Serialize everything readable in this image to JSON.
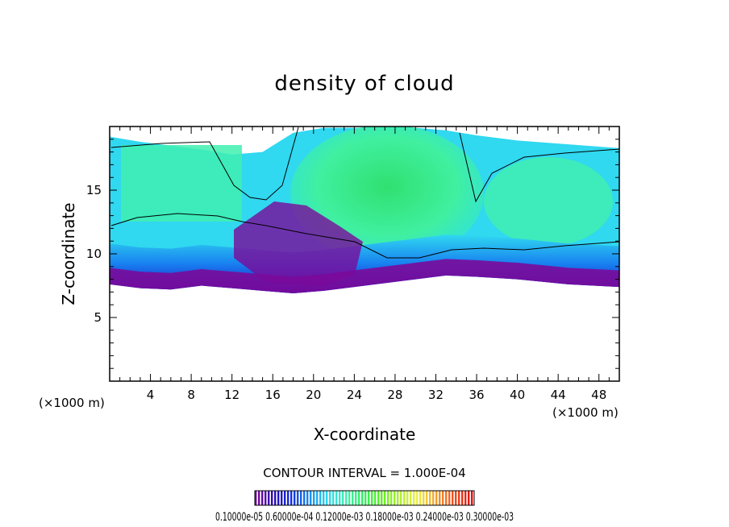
{
  "chart_data": {
    "type": "heatmap",
    "title": "density of cloud",
    "xlabel": "X-coordinate",
    "ylabel": "Z-coordinate",
    "x_unit_label": "(×1000 m)",
    "y_unit_label": "(×1000 m)",
    "xlim": [
      0,
      50
    ],
    "ylim": [
      0,
      20
    ],
    "x_ticks": [
      4,
      8,
      12,
      16,
      20,
      24,
      28,
      32,
      36,
      40,
      44,
      48
    ],
    "y_ticks": [
      5,
      10,
      15
    ],
    "contour_interval_text": "CONTOUR INTERVAL = 1.000E-04",
    "colorbar_labels_text": "0.10000e-05 0.60000e-04 0.12000e-03 0.18000e-03 0.24000e-03 0.30000e-03",
    "colormap": [
      "#7a0a9a",
      "#2a0ab0",
      "#1030e0",
      "#1890f0",
      "#30d8f0",
      "#40f0b0",
      "#30f060",
      "#60f020",
      "#b0f030",
      "#f0f040",
      "#f0a030",
      "#f05020",
      "#e01010"
    ],
    "cloud_base_km": [
      7.6,
      7.3,
      7.2,
      7.5,
      7.3,
      7.1,
      6.9,
      7.1,
      7.4,
      7.7,
      8.0,
      8.3,
      8.2,
      8.0,
      7.6,
      7.4
    ],
    "cloud_base_x": [
      0,
      3,
      6,
      9,
      12,
      15,
      18,
      21,
      24,
      27,
      30,
      33,
      36,
      40,
      45,
      50
    ],
    "cloud_top_km": [
      19.2,
      18.8,
      18.5,
      18.2,
      17.8,
      18.0,
      19.5,
      19.9,
      19.9,
      19.9,
      19.9,
      19.7,
      19.3,
      18.9,
      18.6,
      18.3
    ]
  }
}
